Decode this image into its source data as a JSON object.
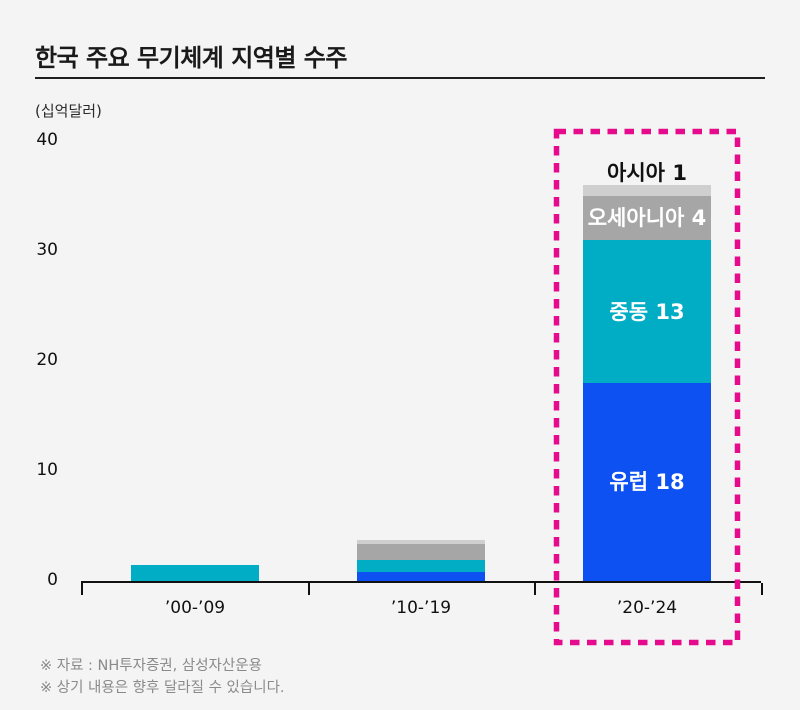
{
  "header": {
    "title": "한국 주요 무기체계 지역별 수주"
  },
  "chart_data": {
    "type": "bar",
    "stacked": true,
    "title": "한국 주요 무기체계 지역별 수주",
    "unit_label": "(십억달러)",
    "categories": [
      "’00-’09",
      "’10-’19",
      "’20-’24"
    ],
    "series": [
      {
        "name": "유럽",
        "color": "#0d51f3",
        "values": [
          0,
          0.8,
          18
        ],
        "segment_label": "유럽 18",
        "segment_label_position": "inside",
        "segment_label_color": "#ffffff"
      },
      {
        "name": "중동",
        "color": "#00adc4",
        "values": [
          1.45,
          1.1,
          13
        ],
        "segment_label": "중동 13",
        "segment_label_position": "inside",
        "segment_label_color": "#ffffff"
      },
      {
        "name": "오세아니아",
        "color": "#a6a6a6",
        "values": [
          0,
          1.5,
          4
        ],
        "segment_label": "오세아니아 4",
        "segment_label_position": "inside",
        "segment_label_color": "#ffffff"
      },
      {
        "name": "아시아",
        "color": "#cfcfcf",
        "values": [
          0,
          0.35,
          1
        ],
        "segment_label": "아시아 1",
        "segment_label_position": "above",
        "segment_label_color": "#111111"
      }
    ],
    "segment_labels_shown_on_category": "’20-’24",
    "ylim": [
      0,
      40
    ],
    "yticks": [
      0,
      10,
      20,
      30,
      40
    ],
    "grid": false,
    "legend": false,
    "highlight": {
      "category_index": 2,
      "style": "dashed-box",
      "color": "#e60b8d"
    }
  },
  "footnotes": {
    "source": "※ 자료 : NH투자증권, 삼성자산운용",
    "disclaimer": "※ 상기 내용은 향후 달라질 수 있습니다."
  }
}
